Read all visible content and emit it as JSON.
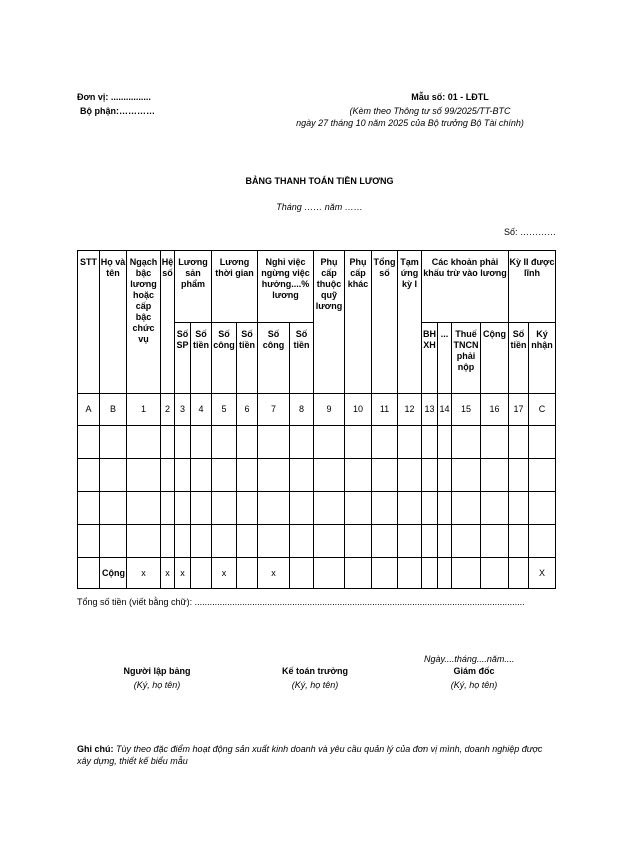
{
  "header": {
    "unit": "Đơn vị: ................",
    "department": "Bộ phận:…………",
    "form_no": "Mẫu số: 01 - LĐTL",
    "attached_1": "(Kèm theo Thông tư số 99/2025/TT-BTC",
    "attached_2": "ngày 27 tháng 10 năm 2025 của Bộ trưởng Bộ Tài chính)"
  },
  "title": "BẢNG THANH TOÁN TIỀN LƯƠNG",
  "period": "Tháng …… năm ……",
  "number": "Số: …………",
  "table": {
    "header_row1": [
      {
        "label": "STT",
        "rowspan": 2
      },
      {
        "label": "Họ và tên",
        "rowspan": 2
      },
      {
        "label": "Ngạch bậc lương hoặc cấp bậc chức vụ",
        "rowspan": 2
      },
      {
        "label": "Hệ số",
        "rowspan": 2
      },
      {
        "label": "Lương sản phẩm",
        "colspan": 2
      },
      {
        "label": "Lương thời gian",
        "colspan": 2
      },
      {
        "label": "Nghỉ việc ngừng việc hưởng....% lương",
        "colspan": 2
      },
      {
        "label": "Phụ cấp thuộc quỹ lương",
        "rowspan": 2
      },
      {
        "label": "Phụ cấp khác",
        "rowspan": 2
      },
      {
        "label": "Tổng số",
        "rowspan": 2
      },
      {
        "label": "Tạm ứng kỳ I",
        "rowspan": 2
      },
      {
        "label": "Các khoản phải khấu trừ vào lương",
        "colspan": 4
      },
      {
        "label": "Kỳ II được lĩnh",
        "colspan": 2
      }
    ],
    "header_row2": [
      "Số SP",
      "Số tiền",
      "Số công",
      "Số tiền",
      "Số công",
      "Số tiền",
      "BH XH",
      "...",
      "Thuế TNCN phải nộp",
      "Cộng",
      "Số tiền",
      "Ký nhận"
    ],
    "index_row": [
      "A",
      "B",
      "1",
      "2",
      "3",
      "4",
      "5",
      "6",
      "7",
      "8",
      "9",
      "10",
      "11",
      "12",
      "13",
      "14",
      "15",
      "16",
      "17",
      "C"
    ],
    "empty_rows": 4,
    "total_row": [
      "",
      "Cộng",
      "x",
      "x",
      "x",
      "",
      "x",
      "",
      "x",
      "",
      "",
      "",
      "",
      "",
      "",
      "",
      "",
      "",
      "",
      "X"
    ]
  },
  "total_words": "Tổng số tiền (viết bằng chữ): ....................................................................................................................................",
  "signatures": {
    "date": "Ngày....tháng....năm....",
    "preparer": {
      "title": "Người lập bảng",
      "note": "(Ký, họ tên)"
    },
    "accountant": {
      "title": "Kế toán trưởng",
      "note": "(Ký, họ tên)"
    },
    "director": {
      "title": "Giám đốc",
      "note": "(Ký, họ tên)"
    }
  },
  "note": {
    "label": "Ghi chú:",
    "text": "Tùy theo đặc điểm hoạt động sản xuất kinh doanh và yêu cầu quản lý của đơn vị mình, doanh nghiệp được xây dựng, thiết kế biểu mẫu"
  }
}
